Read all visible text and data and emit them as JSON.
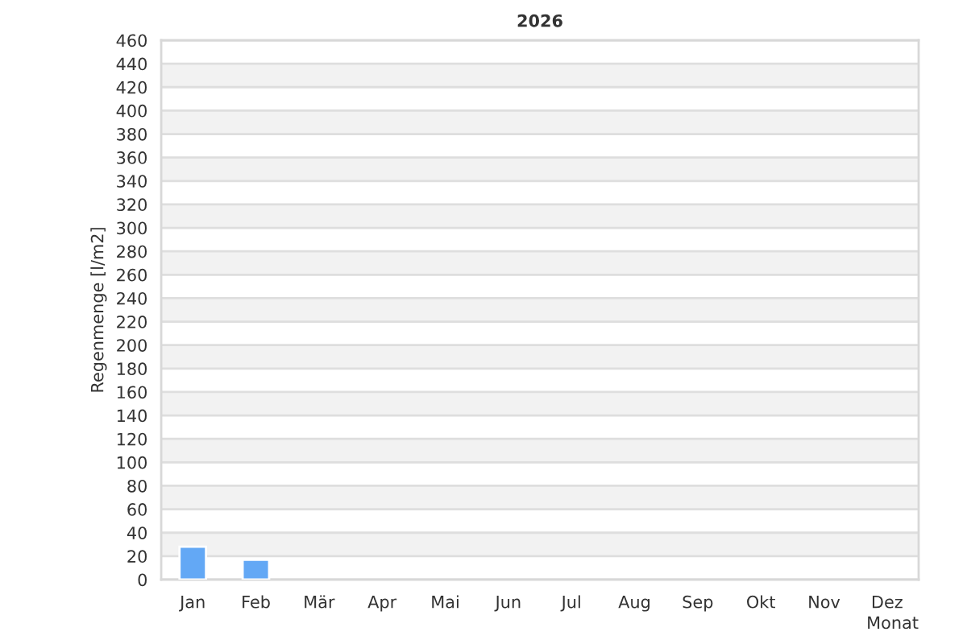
{
  "chart_data": {
    "type": "bar",
    "title": "2026",
    "xlabel": "Monat",
    "ylabel": "Regenmenge [l/m2]",
    "categories": [
      "Jan",
      "Feb",
      "Mär",
      "Apr",
      "Mai",
      "Jun",
      "Jul",
      "Aug",
      "Sep",
      "Okt",
      "Nov",
      "Dez"
    ],
    "values": [
      28,
      17,
      null,
      null,
      null,
      null,
      null,
      null,
      null,
      null,
      null,
      null
    ],
    "color": "#63a8f5",
    "ylim": [
      0,
      460
    ],
    "yticks": [
      0,
      20,
      40,
      60,
      80,
      100,
      120,
      140,
      160,
      180,
      200,
      220,
      240,
      260,
      280,
      300,
      320,
      340,
      360,
      380,
      400,
      420,
      440,
      460
    ],
    "grid": "y"
  }
}
